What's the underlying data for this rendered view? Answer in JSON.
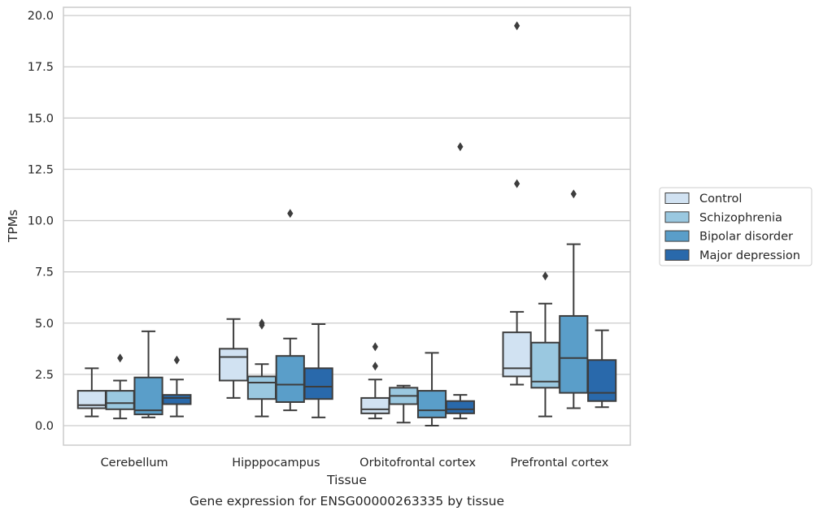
{
  "chart_data": {
    "type": "box",
    "title": "Gene expression for ENSG00000263335 by tissue",
    "xlabel": "Tissue",
    "ylabel": "TPMs",
    "ylim": [
      -0.95,
      20.4
    ],
    "yticks": [
      "0.0",
      "2.5",
      "5.0",
      "7.5",
      "10.0",
      "12.5",
      "15.0",
      "17.5",
      "20.0"
    ],
    "grid": "horizontal",
    "legend_position": "right",
    "categories": [
      "Cerebellum",
      "Hipppocampus",
      "Orbitofrontal cortex",
      "Prefrontal cortex"
    ],
    "series": [
      {
        "name": "Control",
        "color": "#d1e2f2",
        "boxes": [
          {
            "whisker_low": 0.45,
            "q1": 0.85,
            "median": 1.0,
            "q3": 1.7,
            "whisker_high": 2.8,
            "outliers": []
          },
          {
            "whisker_low": 1.35,
            "q1": 2.2,
            "median": 3.35,
            "q3": 3.75,
            "whisker_high": 5.2,
            "outliers": []
          },
          {
            "whisker_low": 0.35,
            "q1": 0.6,
            "median": 0.8,
            "q3": 1.35,
            "whisker_high": 2.25,
            "outliers": [
              2.9,
              3.85
            ]
          },
          {
            "whisker_low": 2.0,
            "q1": 2.4,
            "median": 2.8,
            "q3": 4.55,
            "whisker_high": 5.55,
            "outliers": [
              11.8,
              19.5
            ]
          }
        ]
      },
      {
        "name": "Schizophrenia",
        "color": "#9ac8e0",
        "boxes": [
          {
            "whisker_low": 0.35,
            "q1": 0.8,
            "median": 1.1,
            "q3": 1.7,
            "whisker_high": 2.2,
            "outliers": [
              3.3
            ]
          },
          {
            "whisker_low": 0.45,
            "q1": 1.3,
            "median": 2.1,
            "q3": 2.4,
            "whisker_high": 3.0,
            "outliers": [
              4.9,
              5.0
            ]
          },
          {
            "whisker_low": 0.15,
            "q1": 1.05,
            "median": 1.45,
            "q3": 1.85,
            "whisker_high": 1.95,
            "outliers": []
          },
          {
            "whisker_low": 0.45,
            "q1": 1.85,
            "median": 2.15,
            "q3": 4.05,
            "whisker_high": 5.95,
            "outliers": [
              7.3
            ]
          }
        ]
      },
      {
        "name": "Bipolar disorder",
        "color": "#5a9ec9",
        "boxes": [
          {
            "whisker_low": 0.4,
            "q1": 0.55,
            "median": 0.75,
            "q3": 2.35,
            "whisker_high": 4.6,
            "outliers": []
          },
          {
            "whisker_low": 0.75,
            "q1": 1.15,
            "median": 2.0,
            "q3": 3.4,
            "whisker_high": 4.25,
            "outliers": [
              10.35
            ]
          },
          {
            "whisker_low": 0.0,
            "q1": 0.4,
            "median": 0.75,
            "q3": 1.7,
            "whisker_high": 3.55,
            "outliers": []
          },
          {
            "whisker_low": 0.85,
            "q1": 1.6,
            "median": 3.3,
            "q3": 5.35,
            "whisker_high": 8.85,
            "outliers": [
              11.3
            ]
          }
        ]
      },
      {
        "name": "Major depression",
        "color": "#2969ab",
        "boxes": [
          {
            "whisker_low": 0.45,
            "q1": 1.05,
            "median": 1.35,
            "q3": 1.5,
            "whisker_high": 2.25,
            "outliers": [
              3.2
            ]
          },
          {
            "whisker_low": 0.4,
            "q1": 1.3,
            "median": 1.9,
            "q3": 2.8,
            "whisker_high": 4.95,
            "outliers": []
          },
          {
            "whisker_low": 0.35,
            "q1": 0.6,
            "median": 0.8,
            "q3": 1.2,
            "whisker_high": 1.5,
            "outliers": [
              13.6
            ]
          },
          {
            "whisker_low": 0.9,
            "q1": 1.2,
            "median": 1.6,
            "q3": 3.2,
            "whisker_high": 4.65,
            "outliers": []
          }
        ]
      }
    ]
  }
}
